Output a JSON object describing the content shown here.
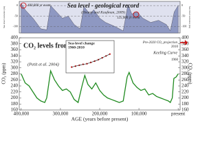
{
  "chart_data": [
    {
      "type": "area",
      "title": "Sea level - geological record",
      "subtitle": "(Hearty and Kaufman, 2009)",
      "y_label": "Sea level variation (m)",
      "y2_label": "Sea level variation (m)",
      "annotations": [
        "400,000 yr event",
        "125,000 yr event"
      ],
      "x": [
        400000,
        390000,
        370000,
        350000,
        335000,
        325000,
        310000,
        295000,
        280000,
        265000,
        250000,
        240000,
        225000,
        215000,
        200000,
        185000,
        160000,
        140000,
        128000,
        118000,
        105000,
        90000,
        70000,
        50000,
        30000,
        20000,
        10000,
        0
      ],
      "values": [
        10,
        -20,
        -60,
        -110,
        -115,
        0,
        -30,
        -60,
        -50,
        -90,
        -110,
        -5,
        -40,
        -20,
        -60,
        -80,
        -100,
        -120,
        5,
        -40,
        -30,
        -60,
        -80,
        -70,
        -90,
        -120,
        -30,
        0
      ],
      "color": "#8e98c2",
      "xlim": [
        405000,
        -5000
      ],
      "ylim": [
        -130,
        20
      ],
      "yticks": [
        0,
        -50,
        -100
      ]
    },
    {
      "type": "line",
      "title": "CO₂ levels from ice cores",
      "subtitle": "(Petit et al. 2004)",
      "x_label": "AGE (years before present)",
      "y_label": "CO₂ (ppm)",
      "y2_label": "CO₂ (ppm)",
      "annotations": [
        "Pre-2020 CO₂ projection",
        "Keeling Curve",
        "2010",
        "1960"
      ],
      "x": [
        400000,
        390000,
        380000,
        370000,
        360000,
        350000,
        340000,
        335000,
        325000,
        315000,
        305000,
        295000,
        285000,
        275000,
        265000,
        255000,
        245000,
        238000,
        230000,
        220000,
        210000,
        200000,
        190000,
        180000,
        170000,
        160000,
        150000,
        140000,
        130000,
        125000,
        115000,
        105000,
        95000,
        85000,
        75000,
        65000,
        55000,
        45000,
        35000,
        25000,
        20000,
        15000,
        11000,
        5000,
        0
      ],
      "values": [
        280,
        250,
        240,
        220,
        200,
        190,
        185,
        200,
        290,
        260,
        240,
        225,
        230,
        220,
        195,
        185,
        240,
        275,
        245,
        230,
        250,
        225,
        210,
        200,
        195,
        190,
        185,
        190,
        270,
        285,
        250,
        235,
        225,
        230,
        210,
        215,
        205,
        200,
        195,
        190,
        185,
        200,
        265,
        270,
        280
      ],
      "color": "#1f8a1f",
      "xlim": [
        405000,
        -5000
      ],
      "ylim": [
        160,
        400
      ],
      "yticks": [
        160,
        180,
        200,
        220,
        240,
        260,
        280,
        300,
        320,
        340,
        360,
        380,
        400
      ],
      "xticks": [
        {
          "value": 400000,
          "label": "400,000"
        },
        {
          "value": 300000,
          "label": "300,000"
        },
        {
          "value": 200000,
          "label": "200,000"
        },
        {
          "value": 100000,
          "label": "100,000"
        },
        {
          "value": 0,
          "label": "present"
        }
      ]
    },
    {
      "type": "line",
      "title": "Sea-level change",
      "subtitle": "1960-2010",
      "x": [
        1960,
        1965,
        1970,
        1975,
        1980,
        1985,
        1990,
        1995,
        2000,
        2005,
        2010
      ],
      "values": [
        -60,
        -55,
        -50,
        -45,
        -42,
        -35,
        -28,
        -20,
        -10,
        0,
        10
      ],
      "color": "#d22020",
      "xlim": [
        1958,
        2012
      ],
      "ylim": [
        -80,
        20
      ]
    }
  ]
}
